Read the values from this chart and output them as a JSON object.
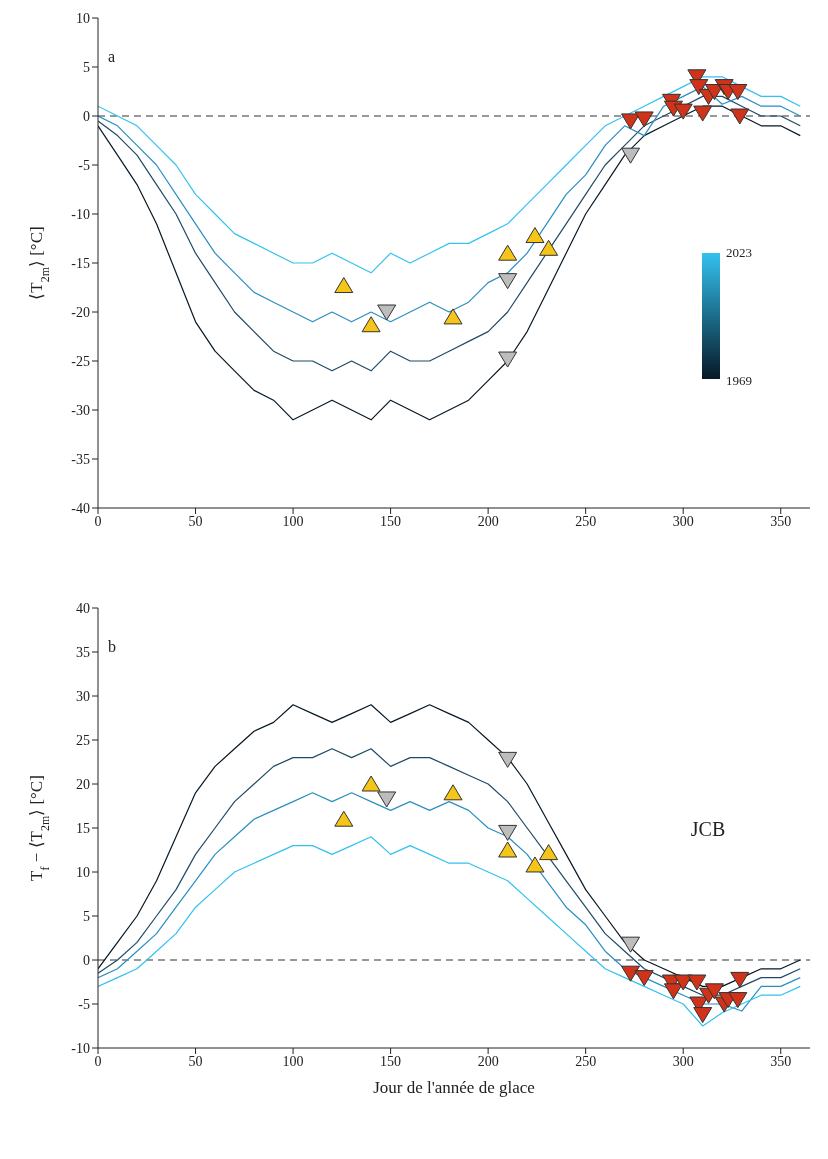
{
  "chart_data": [
    {
      "type": "line",
      "ylabel": "⟨T$_{2m}$⟩ [°C]",
      "annotations": [
        "a",
        "2023",
        "1969"
      ],
      "xlim": [
        0,
        365
      ],
      "xticks": [
        0,
        50,
        100,
        150,
        200,
        250,
        300,
        350
      ],
      "ylim": [
        -40,
        10
      ],
      "yticks": [
        -40,
        -35,
        -30,
        -25,
        -20,
        -15,
        -10,
        -5,
        0,
        5,
        10
      ],
      "grid": false,
      "line_style": "solid",
      "ref_lines": [
        {
          "axis": "y",
          "value": 0,
          "line_style": "dashed",
          "color": "#333333"
        }
      ],
      "x": [
        0,
        10,
        20,
        30,
        40,
        50,
        60,
        70,
        80,
        90,
        100,
        110,
        120,
        130,
        140,
        150,
        160,
        170,
        180,
        190,
        200,
        210,
        220,
        230,
        240,
        250,
        260,
        270,
        280,
        290,
        300,
        310,
        320,
        330,
        340,
        350,
        360
      ],
      "series": [
        {
          "type": "line",
          "color": "#061826",
          "values": [
            -1,
            -4,
            -7,
            -11,
            -16,
            -21,
            -24,
            -26,
            -28,
            -29,
            -31,
            -30,
            -29,
            -30,
            -31,
            -29,
            -30,
            -31,
            -30,
            -29,
            -27,
            -25,
            -22,
            -18,
            -14,
            -10,
            -7,
            -4,
            -2,
            -1,
            0,
            1,
            1,
            0,
            -1,
            -1,
            -2
          ]
        },
        {
          "type": "line",
          "color": "#1f4a66",
          "values": [
            -0.5,
            -2,
            -4,
            -7,
            -10,
            -14,
            -17,
            -20,
            -22,
            -24,
            -25,
            -25,
            -26,
            -25,
            -26,
            -24,
            -25,
            -25,
            -24,
            -23,
            -22,
            -20,
            -17,
            -14,
            -11,
            -8,
            -5,
            -3,
            -1,
            0,
            1,
            2,
            2,
            1,
            0,
            0,
            -1
          ]
        },
        {
          "type": "line",
          "color": "#2a8fc0",
          "values": [
            0,
            -1,
            -3,
            -5,
            -8,
            -11,
            -14,
            -16,
            -18,
            -19,
            -20,
            -21,
            -20,
            -21,
            -20,
            -21,
            -20,
            -19,
            -20,
            -19,
            -17,
            -16,
            -14,
            -11,
            -8,
            -6,
            -3,
            -1,
            -2,
            1,
            2,
            3,
            1.2,
            2,
            1,
            1,
            0
          ]
        },
        {
          "type": "line",
          "color": "#33c1f0",
          "values": [
            1,
            0,
            -1,
            -3,
            -5,
            -8,
            -10,
            -12,
            -13,
            -14,
            -15,
            -15,
            -14,
            -15,
            -16,
            -14,
            -15,
            -14,
            -13,
            -13,
            -12,
            -11,
            -9,
            -7,
            -5,
            -3,
            -1,
            0,
            1,
            2,
            3,
            4,
            4,
            3,
            2,
            2,
            1
          ]
        },
        {
          "type": "scatter",
          "color": "#f5c518",
          "marker": "triangle",
          "x": [
            126,
            140,
            182,
            210,
            224,
            231
          ],
          "values": [
            -17.3,
            -21.3,
            -20.5,
            -14,
            -12.2,
            -13.5
          ]
        },
        {
          "type": "scatter",
          "color": "#bdbdbd",
          "marker": "triangle-down",
          "x": [
            148,
            210,
            210,
            273
          ],
          "values": [
            -20,
            -16.8,
            -24.8,
            -4
          ]
        },
        {
          "type": "scatter",
          "color": "#d0331a",
          "marker": "triangle-down",
          "x": [
            273,
            280,
            294,
            295,
            300,
            307,
            308,
            310,
            313,
            316,
            321,
            323,
            328,
            329
          ],
          "values": [
            -0.5,
            -0.3,
            1.5,
            0.8,
            0.5,
            4,
            3,
            0.3,
            2,
            2.5,
            3,
            2.5,
            2.5,
            0
          ]
        }
      ]
    },
    {
      "type": "line",
      "xlabel": "Jour de l'année de glace",
      "ylabel": "T$_{f}$ − ⟨T$_{2m}$⟩ [°C]",
      "annotations": [
        "b",
        "JCB"
      ],
      "xlim": [
        0,
        365
      ],
      "xticks": [
        0,
        50,
        100,
        150,
        200,
        250,
        300,
        350
      ],
      "ylim": [
        -10,
        40
      ],
      "yticks": [
        -10,
        -5,
        0,
        5,
        10,
        15,
        20,
        25,
        30,
        35,
        40
      ],
      "grid": false,
      "line_style": "solid",
      "ref_lines": [
        {
          "axis": "y",
          "value": 0,
          "line_style": "dashed",
          "color": "#333333"
        }
      ],
      "x": [
        0,
        10,
        20,
        30,
        40,
        50,
        60,
        70,
        80,
        90,
        100,
        110,
        120,
        130,
        140,
        150,
        160,
        170,
        180,
        190,
        200,
        210,
        220,
        230,
        240,
        250,
        260,
        270,
        280,
        290,
        300,
        310,
        320,
        330,
        340,
        350,
        360
      ],
      "series": [
        {
          "type": "line",
          "color": "#061826",
          "values": [
            -1,
            2,
            5,
            9,
            14,
            19,
            22,
            24,
            26,
            27,
            29,
            28,
            27,
            28,
            29,
            27,
            28,
            29,
            28,
            27,
            25,
            23,
            20,
            16,
            12,
            8,
            5,
            2,
            0,
            -1,
            -2,
            -3,
            -3,
            -2,
            -1,
            -1,
            0
          ]
        },
        {
          "type": "line",
          "color": "#1f4a66",
          "values": [
            -1.5,
            0,
            2,
            5,
            8,
            12,
            15,
            18,
            20,
            22,
            23,
            23,
            24,
            23,
            24,
            22,
            23,
            23,
            22,
            21,
            20,
            18,
            15,
            12,
            9,
            6,
            3,
            1,
            -1,
            -2,
            -3,
            -4,
            -4,
            -3,
            -2,
            -2,
            -1
          ]
        },
        {
          "type": "line",
          "color": "#2a8fc0",
          "values": [
            -2,
            -1,
            1,
            3,
            6,
            9,
            12,
            14,
            16,
            17,
            18,
            19,
            18,
            19,
            18,
            17,
            18,
            17,
            18,
            17,
            15,
            14,
            12,
            9,
            6,
            4,
            1,
            -1,
            -2,
            -3,
            -4,
            -5,
            -5,
            -5.8,
            -3,
            -3,
            -2
          ]
        },
        {
          "type": "line",
          "color": "#33c1f0",
          "values": [
            -3,
            -2,
            -1,
            1,
            3,
            6,
            8,
            10,
            11,
            12,
            13,
            13,
            12,
            13,
            14,
            12,
            13,
            12,
            11,
            11,
            10,
            9,
            7,
            5,
            3,
            1,
            -1,
            -2,
            -3,
            -4,
            -5,
            -7.5,
            -6,
            -5,
            -4,
            -4,
            -3
          ]
        },
        {
          "type": "scatter",
          "color": "#f5c518",
          "marker": "triangle",
          "x": [
            126,
            140,
            182,
            210,
            224,
            231
          ],
          "values": [
            16,
            20,
            19,
            12.5,
            10.8,
            12.2
          ]
        },
        {
          "type": "scatter",
          "color": "#bdbdbd",
          "marker": "triangle-down",
          "x": [
            148,
            210,
            210,
            273
          ],
          "values": [
            18.3,
            22.8,
            14.5,
            1.8
          ]
        },
        {
          "type": "scatter",
          "color": "#d0331a",
          "marker": "triangle-down",
          "x": [
            273,
            280,
            294,
            295,
            300,
            307,
            308,
            310,
            313,
            316,
            321,
            323,
            328,
            329
          ],
          "values": [
            -1.5,
            -2,
            -2.5,
            -3.5,
            -2.5,
            -2.5,
            -5,
            -6.2,
            -4,
            -3.5,
            -5,
            -4.5,
            -4.5,
            -2.2
          ]
        }
      ]
    }
  ]
}
